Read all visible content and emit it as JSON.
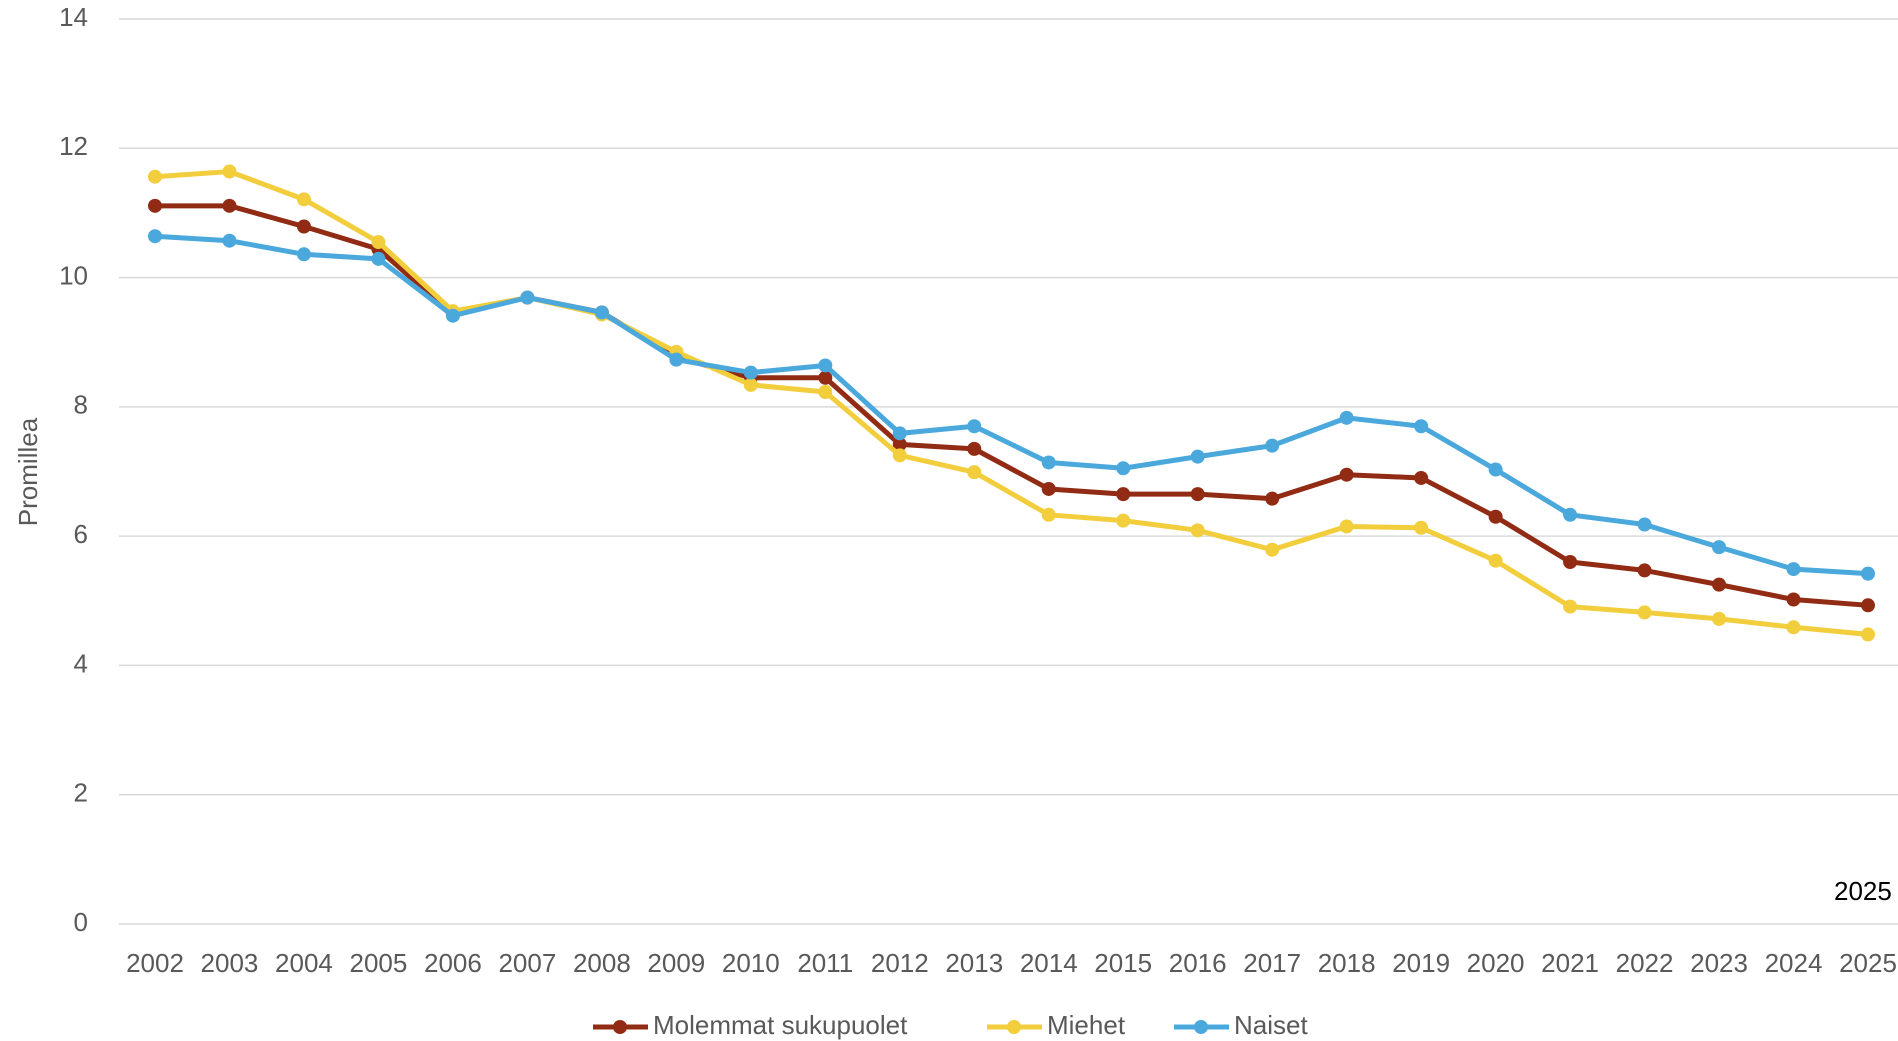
{
  "chart_data": {
    "type": "line",
    "y_label": "Promillea",
    "annotation": "2025",
    "categories": [
      "2002",
      "2003",
      "2004",
      "2005",
      "2006",
      "2007",
      "2008",
      "2009",
      "2010",
      "2011",
      "2012",
      "2013",
      "2014",
      "2015",
      "2016",
      "2017",
      "2018",
      "2019",
      "2020",
      "2021",
      "2022",
      "2023",
      "2024",
      "2025"
    ],
    "series": [
      {
        "name": "Molemmat sukupuolet",
        "color": "#912b13",
        "values": [
          11.11,
          11.11,
          10.79,
          10.44,
          9.43,
          9.69,
          9.46,
          8.77,
          8.45,
          8.45,
          7.42,
          7.35,
          6.73,
          6.65,
          6.65,
          6.58,
          6.95,
          6.9,
          6.3,
          5.6,
          5.47,
          5.25,
          5.02,
          4.93
        ]
      },
      {
        "name": "Miehet",
        "color": "#f2cd3c",
        "values": [
          11.56,
          11.64,
          11.21,
          10.55,
          9.48,
          9.69,
          9.43,
          8.85,
          8.34,
          8.23,
          7.25,
          6.99,
          6.33,
          6.24,
          6.09,
          5.79,
          6.15,
          6.13,
          5.62,
          4.91,
          4.82,
          4.72,
          4.59,
          4.48
        ]
      },
      {
        "name": "Naiset",
        "color": "#4aa8dc",
        "values": [
          10.64,
          10.57,
          10.36,
          10.29,
          9.41,
          9.69,
          9.46,
          8.73,
          8.53,
          8.64,
          7.59,
          7.7,
          7.14,
          7.05,
          7.23,
          7.4,
          7.83,
          7.7,
          7.03,
          6.33,
          6.18,
          5.83,
          5.49,
          5.42
        ]
      }
    ],
    "ylim": [
      0,
      14
    ],
    "yticks": [
      0,
      2,
      4,
      6,
      8,
      10,
      12,
      14
    ],
    "grid": true,
    "legend": "bottom"
  }
}
